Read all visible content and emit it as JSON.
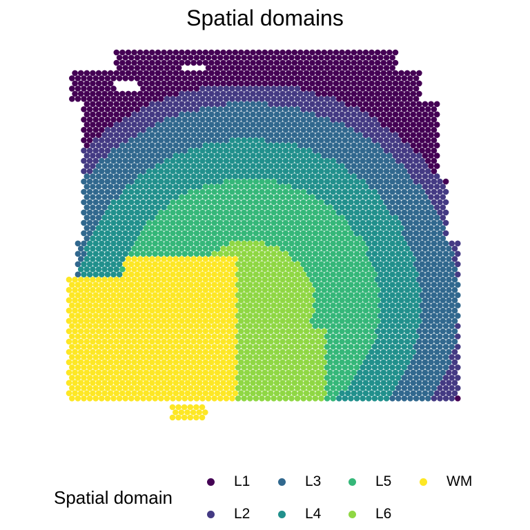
{
  "chart_data": {
    "type": "scatter",
    "title": "Spatial domains",
    "legend_title": "Spatial domain",
    "legend_position": "bottom",
    "grid": false,
    "axes_visible": false,
    "series": [
      {
        "name": "L1",
        "color": "#440154"
      },
      {
        "name": "L2",
        "color": "#443A83"
      },
      {
        "name": "L3",
        "color": "#31688E"
      },
      {
        "name": "L4",
        "color": "#21908C"
      },
      {
        "name": "L5",
        "color": "#35B779"
      },
      {
        "name": "L6",
        "color": "#8FD744"
      },
      {
        "name": "WM",
        "color": "#FDE725"
      }
    ]
  }
}
